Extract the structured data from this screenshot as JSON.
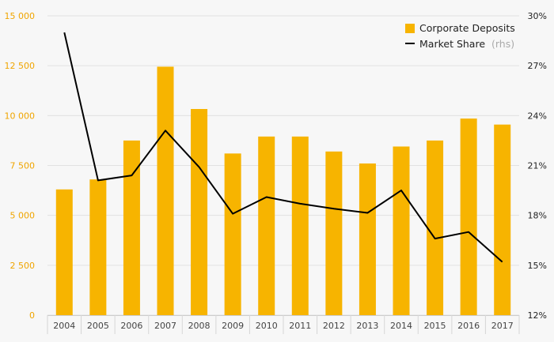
{
  "colors": {
    "bar": "#f7b400",
    "line": "#000000",
    "left_axis_text": "#f0a500",
    "background": "#f7f7f7",
    "grid": "#e2e2e2"
  },
  "chart_data": {
    "type": "bar+line",
    "title": "",
    "xlabel": "",
    "ylabel": "",
    "categories": [
      "2004",
      "2005",
      "2006",
      "2007",
      "2008",
      "2009",
      "2010",
      "2011",
      "2012",
      "2013",
      "2014",
      "2015",
      "2016",
      "2017"
    ],
    "series": [
      {
        "name": "Corporate Deposits",
        "type": "bar",
        "axis": "left",
        "values": [
          6300,
          6800,
          8750,
          12450,
          10330,
          8100,
          8950,
          8950,
          8200,
          7600,
          8450,
          8750,
          9850,
          9550
        ]
      },
      {
        "name": "Market Share",
        "legend_suffix": "(rhs)",
        "type": "line",
        "axis": "right",
        "values": [
          29.0,
          20.1,
          20.4,
          23.1,
          20.9,
          18.1,
          19.1,
          18.7,
          18.4,
          18.15,
          19.5,
          16.6,
          17.0,
          15.2
        ]
      }
    ],
    "y_left": {
      "range": [
        0,
        15000
      ],
      "ticks": [
        0,
        2500,
        5000,
        7500,
        10000,
        12500,
        15000
      ],
      "tick_labels": [
        "0",
        "2 500",
        "5 000",
        "7 500",
        "10 000",
        "12 500",
        "15 000"
      ]
    },
    "y_right": {
      "range": [
        12,
        30
      ],
      "ticks": [
        12,
        15,
        18,
        21,
        24,
        27,
        30
      ],
      "tick_labels": [
        "12%",
        "15%",
        "18%",
        "21%",
        "24%",
        "27%",
        "30%"
      ]
    },
    "grid": true,
    "legend_position": "top-right"
  }
}
